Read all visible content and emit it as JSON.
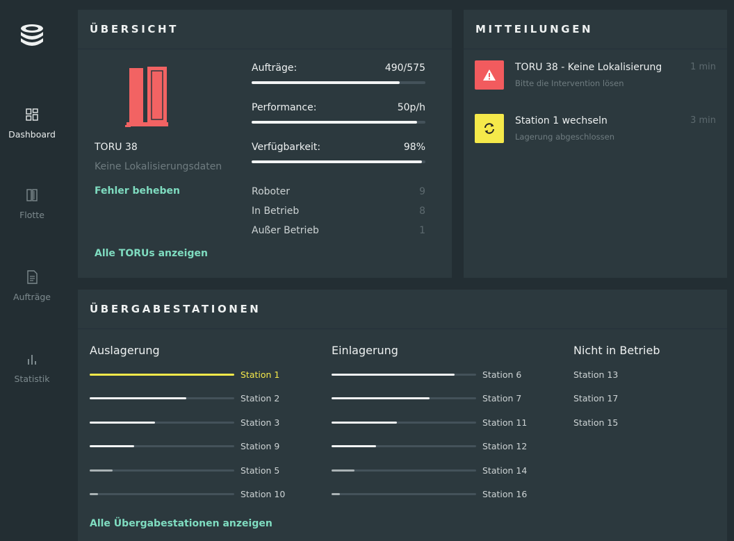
{
  "colors": {
    "accent_green": "#7fdcc0",
    "accent_yellow": "#f5e94a",
    "alert_red": "#f25b5e",
    "robot_red": "#f26363",
    "panel_bg": "#2c393e",
    "app_bg": "#232e33"
  },
  "sidebar": {
    "logo_icon": "stacked-layers-logo",
    "items": [
      {
        "label": "Dashboard",
        "icon": "grid-icon",
        "active": true
      },
      {
        "label": "Flotte",
        "icon": "fleet-icon",
        "active": false
      },
      {
        "label": "Aufträge",
        "icon": "document-icon",
        "active": false
      },
      {
        "label": "Statistik",
        "icon": "bar-chart-icon",
        "active": false
      }
    ]
  },
  "overview": {
    "title": "ÜBERSICHT",
    "robot": {
      "name": "TORU 38",
      "status": "Keine Lokalisierungsdaten",
      "fix_link": "Fehler beheben",
      "icon": "robot-icon"
    },
    "metrics": [
      {
        "label": "Aufträge:",
        "value": "490/575",
        "fraction": 0.852
      },
      {
        "label": "Performance:",
        "value": "50p/h",
        "fraction": 0.95
      },
      {
        "label": "Verfügbarkeit:",
        "value": "98%",
        "fraction": 0.98
      }
    ],
    "stats": [
      {
        "label": "Roboter",
        "value": "9"
      },
      {
        "label": "In Betrieb",
        "value": "8"
      },
      {
        "label": "Außer Betrieb",
        "value": "1"
      }
    ],
    "all_link": "Alle TORUs anzeigen"
  },
  "notifications": {
    "title": "MITTEILUNGEN",
    "items": [
      {
        "title": "TORU 38 - Keine Lokalisierung",
        "subtitle": "Bitte die Intervention lösen",
        "time": "1 min",
        "icon": "warning-icon",
        "color": "#f25b5e"
      },
      {
        "title": "Station 1 wechseln",
        "subtitle": "Lagerung abgeschlossen",
        "time": "3 min",
        "icon": "refresh-icon",
        "color": "#f5e94a"
      }
    ]
  },
  "stations": {
    "title": "ÜBERGABESTATIONEN",
    "auslagerung": {
      "title": "Auslagerung",
      "items": [
        {
          "name": "Station 1",
          "fraction": 1.0,
          "highlight": true
        },
        {
          "name": "Station 2",
          "fraction": 0.67,
          "highlight": false
        },
        {
          "name": "Station 3",
          "fraction": 0.45,
          "highlight": false
        },
        {
          "name": "Station 9",
          "fraction": 0.31,
          "highlight": false
        },
        {
          "name": "Station 5",
          "fraction": 0.16,
          "highlight": false
        },
        {
          "name": "Station 10",
          "fraction": 0.06,
          "highlight": false
        }
      ]
    },
    "einlagerung": {
      "title": "Einlagerung",
      "items": [
        {
          "name": "Station 6",
          "fraction": 0.85
        },
        {
          "name": "Station 7",
          "fraction": 0.68
        },
        {
          "name": "Station 11",
          "fraction": 0.45
        },
        {
          "name": "Station 12",
          "fraction": 0.31
        },
        {
          "name": "Station 14",
          "fraction": 0.16
        },
        {
          "name": "Station 16",
          "fraction": 0.06
        }
      ]
    },
    "nicht_in_betrieb": {
      "title": "Nicht in Betrieb",
      "items": [
        "Station 13",
        "Station 17",
        "Station 15"
      ]
    },
    "all_link": "Alle Übergabestationen anzeigen"
  }
}
